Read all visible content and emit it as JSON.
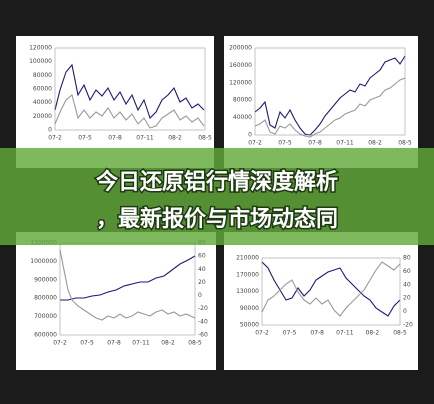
{
  "panels": [
    {
      "yticks": [
        "120000",
        "100000",
        "80000",
        "60000",
        "40000",
        "20000",
        "0"
      ],
      "xticks": [
        "07-2",
        "07-5",
        "07-8",
        "07-11",
        "08-2",
        "08-5"
      ]
    },
    {
      "yticks": [
        "200000",
        "160000",
        "120000",
        "80000",
        "40000",
        "0"
      ],
      "xticks": [
        "07-2",
        "07-5",
        "07-8",
        "07-11",
        "08-2",
        "08-5"
      ]
    },
    {
      "yticks": [
        "1100000",
        "1000000",
        "900000",
        "800000",
        "700000",
        "600000"
      ],
      "y2ticks": [
        "80",
        "60",
        "40",
        "20",
        "0",
        "-20",
        "-40",
        "-60"
      ],
      "xticks": [
        "07-2",
        "07-5",
        "07-8",
        "07-11",
        "08-2",
        "08-5"
      ]
    },
    {
      "yticks": [
        "210000",
        "170000",
        "130000",
        "90000",
        "50000"
      ],
      "y2ticks": [
        "80",
        "60",
        "40",
        "20",
        "0",
        "-20"
      ],
      "xticks": [
        "07-2",
        "07-5",
        "07-8",
        "07-11",
        "08-2",
        "08-5"
      ]
    }
  ],
  "banner": {
    "lines": [
      "今日还原铝行情深度解析",
      "，最新报价与市场动态同"
    ]
  }
}
